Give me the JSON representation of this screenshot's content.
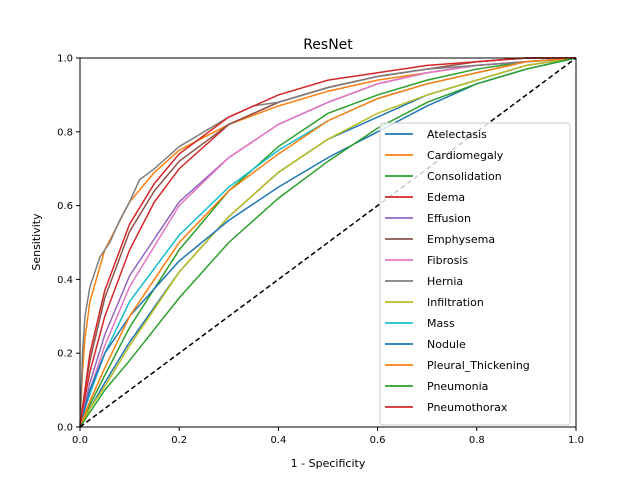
{
  "chart_data": {
    "type": "line",
    "title": "ResNet",
    "xlabel": "1 - Specificity",
    "ylabel": "Sensitivity",
    "xlim": [
      0.0,
      1.0
    ],
    "ylim": [
      0.0,
      1.0
    ],
    "xticks": [
      "0.0",
      "0.2",
      "0.4",
      "0.6",
      "0.8",
      "1.0"
    ],
    "yticks": [
      "0.0",
      "0.2",
      "0.4",
      "0.6",
      "0.8",
      "1.0"
    ],
    "grid": false,
    "legend_position": "lower-right",
    "diagonal": {
      "x": [
        0,
        1
      ],
      "y": [
        0,
        1
      ],
      "style": "dashed",
      "color": "#000000"
    },
    "series": [
      {
        "name": "Atelectasis",
        "color": "#1f77b4",
        "x": [
          0,
          0.02,
          0.05,
          0.1,
          0.2,
          0.3,
          0.4,
          0.5,
          0.6,
          0.7,
          0.8,
          0.9,
          1.0
        ],
        "y": [
          0,
          0.05,
          0.12,
          0.23,
          0.42,
          0.57,
          0.69,
          0.78,
          0.84,
          0.9,
          0.94,
          0.98,
          1.0
        ]
      },
      {
        "name": "Cardiomegaly",
        "color": "#ff7f0e",
        "x": [
          0,
          0.005,
          0.01,
          0.02,
          0.05,
          0.1,
          0.15,
          0.2,
          0.3,
          0.4,
          0.5,
          0.6,
          0.7,
          0.8,
          0.9,
          1.0
        ],
        "y": [
          0,
          0.15,
          0.24,
          0.34,
          0.48,
          0.61,
          0.69,
          0.75,
          0.82,
          0.87,
          0.91,
          0.94,
          0.96,
          0.98,
          0.99,
          1.0
        ]
      },
      {
        "name": "Consolidation",
        "color": "#2ca02c",
        "x": [
          0,
          0.02,
          0.05,
          0.1,
          0.2,
          0.3,
          0.4,
          0.5,
          0.6,
          0.7,
          0.8,
          0.9,
          1.0
        ],
        "y": [
          0,
          0.06,
          0.14,
          0.27,
          0.48,
          0.64,
          0.76,
          0.85,
          0.9,
          0.94,
          0.97,
          0.99,
          1.0
        ]
      },
      {
        "name": "Edema",
        "color": "#d62728",
        "x": [
          0,
          0.01,
          0.02,
          0.05,
          0.1,
          0.15,
          0.2,
          0.3,
          0.4,
          0.5,
          0.6,
          0.7,
          0.8,
          0.9,
          1.0
        ],
        "y": [
          0,
          0.08,
          0.15,
          0.3,
          0.48,
          0.61,
          0.7,
          0.82,
          0.88,
          0.92,
          0.95,
          0.97,
          0.99,
          1.0,
          1.0
        ]
      },
      {
        "name": "Effusion",
        "color": "#9467bd",
        "x": [
          0,
          0.01,
          0.02,
          0.05,
          0.1,
          0.2,
          0.3,
          0.4,
          0.5,
          0.6,
          0.7,
          0.8,
          0.9,
          1.0
        ],
        "y": [
          0,
          0.06,
          0.12,
          0.25,
          0.41,
          0.61,
          0.73,
          0.82,
          0.88,
          0.93,
          0.96,
          0.98,
          0.99,
          1.0
        ]
      },
      {
        "name": "Emphysema",
        "color": "#8c564b",
        "x": [
          0,
          0.01,
          0.02,
          0.05,
          0.1,
          0.15,
          0.2,
          0.3,
          0.4,
          0.5,
          0.6,
          0.7,
          0.8,
          0.9,
          1.0
        ],
        "y": [
          0,
          0.1,
          0.18,
          0.35,
          0.53,
          0.64,
          0.72,
          0.82,
          0.88,
          0.92,
          0.95,
          0.97,
          0.99,
          1.0,
          1.0
        ]
      },
      {
        "name": "Fibrosis",
        "color": "#e377c2",
        "x": [
          0,
          0.02,
          0.05,
          0.1,
          0.2,
          0.3,
          0.4,
          0.5,
          0.6,
          0.7,
          0.8,
          0.9,
          1.0
        ],
        "y": [
          0,
          0.1,
          0.22,
          0.38,
          0.6,
          0.73,
          0.82,
          0.88,
          0.93,
          0.96,
          0.98,
          0.99,
          1.0
        ]
      },
      {
        "name": "Hernia",
        "color": "#7f7f7f",
        "x": [
          0,
          0.005,
          0.01,
          0.02,
          0.04,
          0.06,
          0.08,
          0.1,
          0.12,
          0.15,
          0.2,
          0.25,
          0.3,
          0.35,
          0.4,
          0.5,
          0.6,
          0.7,
          0.8,
          0.9,
          1.0
        ],
        "y": [
          0,
          0.2,
          0.3,
          0.38,
          0.46,
          0.5,
          0.56,
          0.61,
          0.67,
          0.7,
          0.76,
          0.8,
          0.84,
          0.87,
          0.88,
          0.92,
          0.95,
          0.97,
          0.98,
          0.99,
          1.0
        ]
      },
      {
        "name": "Infiltration",
        "color": "#bcbd22",
        "x": [
          0,
          0.02,
          0.05,
          0.1,
          0.2,
          0.3,
          0.4,
          0.5,
          0.6,
          0.7,
          0.8,
          0.9,
          1.0
        ],
        "y": [
          0,
          0.05,
          0.11,
          0.22,
          0.42,
          0.57,
          0.69,
          0.78,
          0.85,
          0.9,
          0.94,
          0.98,
          1.0
        ]
      },
      {
        "name": "Mass",
        "color": "#17becf",
        "x": [
          0,
          0.01,
          0.02,
          0.05,
          0.1,
          0.2,
          0.3,
          0.4,
          0.5,
          0.6,
          0.7,
          0.8,
          0.9,
          1.0
        ],
        "y": [
          0,
          0.05,
          0.09,
          0.2,
          0.34,
          0.52,
          0.65,
          0.75,
          0.83,
          0.89,
          0.93,
          0.96,
          0.99,
          1.0
        ]
      },
      {
        "name": "Nodule",
        "color": "#1f77b4",
        "x": [
          0,
          0.01,
          0.02,
          0.05,
          0.1,
          0.2,
          0.3,
          0.4,
          0.5,
          0.6,
          0.7,
          0.8,
          0.9,
          1.0
        ],
        "y": [
          0,
          0.05,
          0.1,
          0.2,
          0.3,
          0.45,
          0.56,
          0.65,
          0.73,
          0.8,
          0.87,
          0.93,
          0.97,
          1.0
        ]
      },
      {
        "name": "Pleural_Thickening",
        "color": "#ff7f0e",
        "x": [
          0,
          0.02,
          0.05,
          0.1,
          0.2,
          0.3,
          0.4,
          0.5,
          0.6,
          0.7,
          0.8,
          0.9,
          1.0
        ],
        "y": [
          0,
          0.07,
          0.16,
          0.3,
          0.5,
          0.64,
          0.74,
          0.83,
          0.89,
          0.93,
          0.96,
          0.99,
          1.0
        ]
      },
      {
        "name": "Pneumonia",
        "color": "#2ca02c",
        "x": [
          0,
          0.02,
          0.05,
          0.1,
          0.2,
          0.3,
          0.4,
          0.5,
          0.6,
          0.7,
          0.8,
          0.9,
          1.0
        ],
        "y": [
          0,
          0.04,
          0.1,
          0.18,
          0.35,
          0.5,
          0.62,
          0.72,
          0.81,
          0.88,
          0.93,
          0.97,
          1.0
        ]
      },
      {
        "name": "Pneumothorax",
        "color": "#d62728",
        "x": [
          0,
          0.01,
          0.02,
          0.05,
          0.1,
          0.15,
          0.2,
          0.3,
          0.4,
          0.5,
          0.6,
          0.7,
          0.8,
          0.9,
          1.0
        ],
        "y": [
          0,
          0.1,
          0.2,
          0.37,
          0.55,
          0.66,
          0.74,
          0.84,
          0.9,
          0.94,
          0.96,
          0.98,
          0.99,
          1.0,
          1.0
        ]
      }
    ]
  }
}
